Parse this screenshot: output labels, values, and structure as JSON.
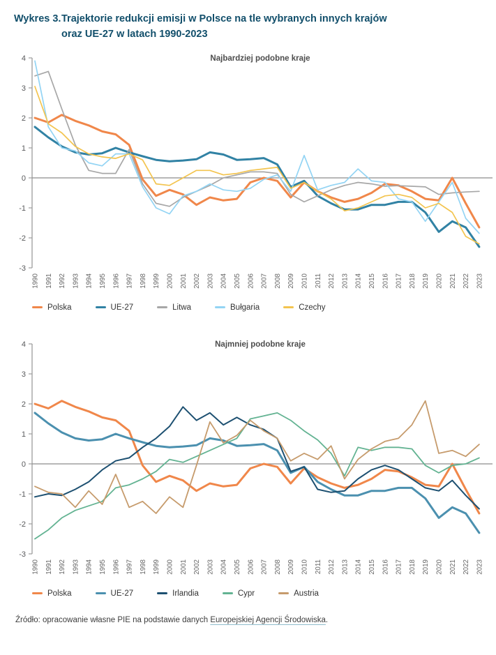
{
  "header": {
    "label": "Wykres 3.",
    "title_line1": "Trajektorie redukcji emisji w Polsce na tle wybranych innych krajów",
    "title_line2": "oraz UE-27 w latach 1990-2023",
    "title_color": "#124F6B"
  },
  "footer": {
    "prefix": "Źródło: opracowanie własne PIE na podstawie danych ",
    "link_text": "Europejskiej Agencji Środowiska",
    "suffix": "."
  },
  "style": {
    "axis_color": "#9c9c9c",
    "zero_line_color": "#8c8c8c",
    "tick_label_color": "#58595b",
    "year_label_color": "#666666",
    "subtitle_color": "#4d4d4d"
  },
  "chart_data": [
    {
      "type": "line",
      "title": "Najbardziej podobne kraje",
      "x": [
        1990,
        1991,
        1992,
        1993,
        1994,
        1995,
        1996,
        1997,
        1998,
        1999,
        2000,
        2001,
        2002,
        2003,
        2004,
        2005,
        2006,
        2007,
        2008,
        2009,
        2010,
        2011,
        2012,
        2013,
        2014,
        2015,
        2016,
        2017,
        2018,
        2019,
        2020,
        2021,
        2022,
        2023
      ],
      "ylim": [
        -3,
        4
      ],
      "yticks": [
        4,
        3,
        2,
        1,
        0,
        -1,
        -2,
        -3
      ],
      "grid": "zero-line-only",
      "legend_position": "bottom",
      "series": [
        {
          "name": "Polska",
          "color": "#F0874A",
          "width": 3,
          "values": [
            2,
            1.85,
            2.1,
            1.9,
            1.75,
            1.55,
            1.45,
            1.1,
            -0.05,
            -0.6,
            -0.4,
            -0.55,
            -0.9,
            -0.65,
            -0.75,
            -0.7,
            -0.15,
            0,
            -0.1,
            -0.65,
            -0.15,
            -0.45,
            -0.65,
            -0.8,
            -0.7,
            -0.5,
            -0.2,
            -0.25,
            -0.45,
            -0.7,
            -0.75,
            0,
            -0.85,
            -1.65
          ]
        },
        {
          "name": "UE-27",
          "color": "#3182A4",
          "width": 3,
          "values": [
            1.7,
            1.35,
            1.05,
            0.85,
            0.78,
            0.82,
            1,
            0.85,
            0.72,
            0.6,
            0.55,
            0.58,
            0.62,
            0.85,
            0.78,
            0.6,
            0.62,
            0.66,
            0.45,
            -0.3,
            -0.1,
            -0.6,
            -0.85,
            -1.05,
            -1.05,
            -0.9,
            -0.9,
            -0.8,
            -0.8,
            -1.15,
            -1.8,
            -1.45,
            -1.65,
            -2.3
          ]
        },
        {
          "name": "Litwa",
          "color": "#A7A7A7",
          "width": 1.7,
          "values": [
            3.4,
            3.55,
            2.3,
            1.1,
            0.25,
            0.15,
            0.15,
            0.95,
            -0.2,
            -0.85,
            -0.95,
            -0.65,
            -0.45,
            -0.25,
            0,
            0.1,
            0.2,
            0.2,
            0.15,
            -0.55,
            -0.8,
            -0.6,
            -0.4,
            -0.25,
            -0.15,
            -0.2,
            -0.28,
            -0.26,
            -0.28,
            -0.3,
            -0.55,
            -0.5,
            -0.47,
            -0.45
          ]
        },
        {
          "name": "Bułgaria",
          "color": "#93D4F4",
          "width": 1.7,
          "values": [
            3.9,
            1.7,
            1,
            0.9,
            0.5,
            0.4,
            0.8,
            0.8,
            -0.3,
            -1,
            -1.2,
            -0.6,
            -0.45,
            -0.2,
            -0.4,
            -0.45,
            -0.35,
            -0.05,
            0.1,
            -0.45,
            0.75,
            -0.4,
            -0.25,
            -0.15,
            0.3,
            -0.1,
            -0.15,
            -0.7,
            -0.8,
            -1.45,
            -0.8,
            -0.15,
            -1.35,
            -1.85
          ]
        },
        {
          "name": "Czechy",
          "color": "#F3C44F",
          "width": 1.7,
          "values": [
            3.05,
            1.8,
            1.5,
            1.05,
            0.8,
            0.7,
            0.65,
            0.8,
            0.6,
            -0.2,
            -0.25,
            0,
            0.25,
            0.25,
            0.1,
            0.15,
            0.25,
            0.3,
            0.35,
            -0.35,
            -0.15,
            -0.45,
            -0.7,
            -1.1,
            -1,
            -0.8,
            -0.6,
            -0.55,
            -0.65,
            -1,
            -0.85,
            -1.15,
            -1.95,
            -2.2
          ]
        }
      ]
    },
    {
      "type": "line",
      "title": "Najmniej podobne kraje",
      "x": [
        1990,
        1991,
        1992,
        1993,
        1994,
        1995,
        1996,
        1997,
        1998,
        1999,
        2000,
        2001,
        2002,
        2003,
        2004,
        2005,
        2006,
        2007,
        2008,
        2009,
        2010,
        2011,
        2012,
        2013,
        2014,
        2015,
        2016,
        2017,
        2018,
        2019,
        2020,
        2021,
        2022,
        2023
      ],
      "ylim": [
        -3,
        4
      ],
      "yticks": [
        4,
        3,
        2,
        1,
        0,
        -1,
        -2,
        -3
      ],
      "grid": "zero-line-only",
      "legend_position": "bottom",
      "series": [
        {
          "name": "Polska",
          "color": "#F0874A",
          "width": 3,
          "values": [
            2,
            1.85,
            2.1,
            1.9,
            1.75,
            1.55,
            1.45,
            1.1,
            -0.05,
            -0.6,
            -0.4,
            -0.55,
            -0.9,
            -0.65,
            -0.75,
            -0.7,
            -0.15,
            0,
            -0.1,
            -0.65,
            -0.15,
            -0.45,
            -0.65,
            -0.8,
            -0.7,
            -0.5,
            -0.2,
            -0.25,
            -0.45,
            -0.7,
            -0.75,
            0,
            -0.85,
            -1.65
          ]
        },
        {
          "name": "UE-27",
          "color": "#4B90AF",
          "width": 3,
          "values": [
            1.7,
            1.35,
            1.05,
            0.85,
            0.78,
            0.82,
            1,
            0.85,
            0.72,
            0.6,
            0.55,
            0.58,
            0.62,
            0.85,
            0.78,
            0.6,
            0.62,
            0.66,
            0.45,
            -0.3,
            -0.1,
            -0.6,
            -0.85,
            -1.05,
            -1.05,
            -0.9,
            -0.9,
            -0.8,
            -0.8,
            -1.15,
            -1.8,
            -1.45,
            -1.65,
            -2.3
          ]
        },
        {
          "name": "Irlandia",
          "color": "#1D5071",
          "width": 2,
          "values": [
            -1.1,
            -1,
            -1.05,
            -0.85,
            -0.6,
            -0.2,
            0.1,
            0.2,
            0.55,
            0.85,
            1.25,
            1.9,
            1.45,
            1.7,
            1.3,
            1.55,
            1.3,
            1.15,
            0.85,
            -0.25,
            -0.1,
            -0.85,
            -0.95,
            -0.9,
            -0.5,
            -0.2,
            -0.05,
            -0.2,
            -0.5,
            -0.8,
            -0.9,
            -0.55,
            -1.05,
            -1.5
          ]
        },
        {
          "name": "Cypr",
          "color": "#63B392",
          "width": 1.8,
          "values": [
            -2.5,
            -2.2,
            -1.8,
            -1.55,
            -1.4,
            -1.25,
            -0.8,
            -0.7,
            -0.5,
            -0.25,
            0.15,
            0.05,
            0.25,
            0.45,
            0.65,
            0.85,
            1.5,
            1.6,
            1.7,
            1.45,
            1.1,
            0.8,
            0.35,
            -0.4,
            0.55,
            0.45,
            0.55,
            0.55,
            0.5,
            -0.05,
            -0.3,
            -0.05,
            0,
            0.2
          ]
        },
        {
          "name": "Austria",
          "color": "#C69B6C",
          "width": 1.8,
          "values": [
            -0.75,
            -0.95,
            -1,
            -1.45,
            -0.9,
            -1.35,
            -0.35,
            -1.45,
            -1.25,
            -1.65,
            -1.1,
            -1.45,
            -0.05,
            1.4,
            0.7,
            0.95,
            1.45,
            1.1,
            0.85,
            0.1,
            0.35,
            0.15,
            0.6,
            -0.5,
            0.15,
            0.5,
            0.75,
            0.85,
            1.3,
            2.1,
            0.35,
            0.45,
            0.25,
            0.65
          ]
        }
      ]
    }
  ]
}
